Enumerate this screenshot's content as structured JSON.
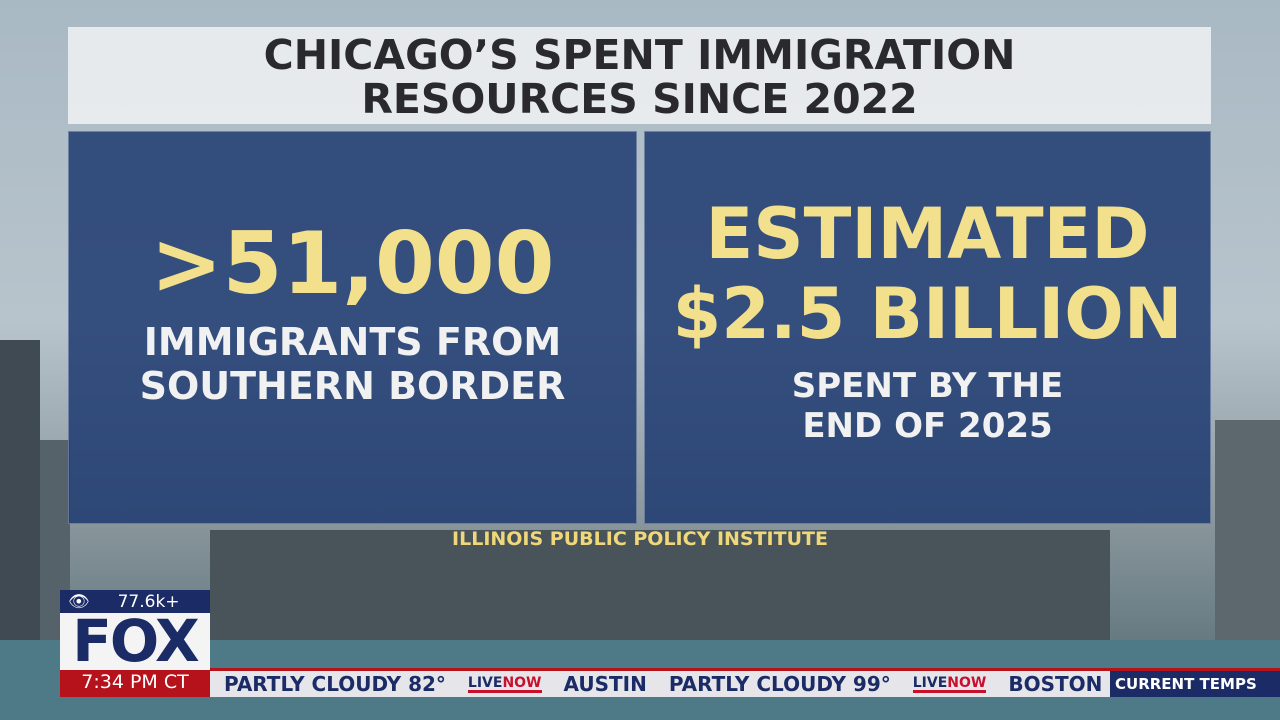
{
  "title": {
    "line1": "CHICAGO’S SPENT IMMIGRATION",
    "line2": "RESOURCES SINCE 2022"
  },
  "left_panel": {
    "figure": ">51,000",
    "line1": "IMMIGRANTS FROM",
    "line2": "SOUTHERN BORDER"
  },
  "right_panel": {
    "figure1": "ESTIMATED",
    "figure2": "$2.5 BILLION",
    "line1": "SPENT BY THE",
    "line2": "END OF 2025"
  },
  "source": "ILLINOIS PUBLIC POLICY INSTITUTE",
  "network": {
    "viewers": "77.6k+",
    "logo": "FOX",
    "time": "7:34 PM CT"
  },
  "ticker": {
    "items": [
      "PARTLY CLOUDY 82°",
      "AUSTIN",
      "PARTLY CLOUDY 99°",
      "BOSTON"
    ],
    "live_logo_a": "LIVE",
    "live_logo_b": "NOW",
    "label": "CURRENT TEMPS"
  },
  "colors": {
    "navy": "#1b2b66",
    "red": "#b5121b",
    "yellow": "#f3e08d"
  }
}
